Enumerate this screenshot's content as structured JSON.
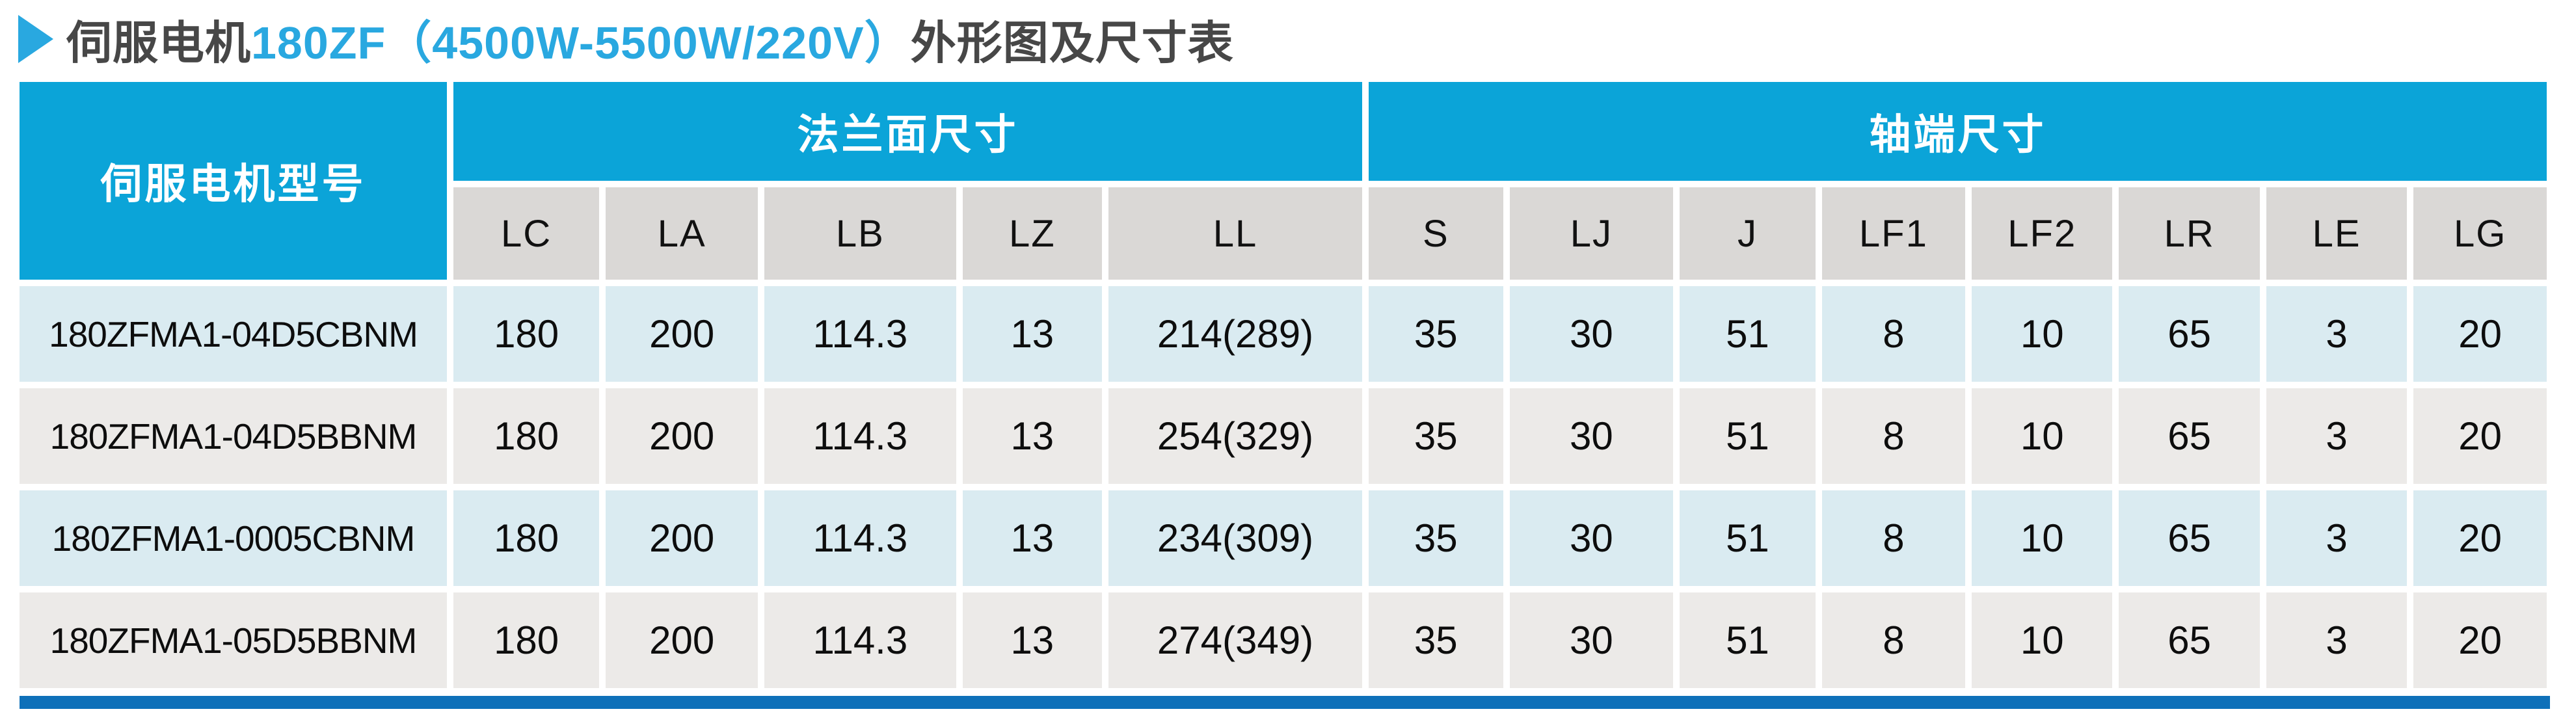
{
  "title": {
    "dark_part_1": "伺服电机",
    "accent_part": "180ZF（4500W-5500W/220V）",
    "dark_part_2": "外形图及尺寸表"
  },
  "table": {
    "model_header": "伺服电机型号",
    "group_headers": [
      {
        "label": "法兰面尺寸",
        "span": 5
      },
      {
        "label": "轴端尺寸",
        "span": 8
      }
    ],
    "columns": [
      "LC",
      "LA",
      "LB",
      "LZ",
      "LL",
      "S",
      "LJ",
      "J",
      "LF1",
      "LF2",
      "LR",
      "LE",
      "LG"
    ],
    "rows": [
      {
        "model": "180ZFMA1-04D5CBNM",
        "values": [
          "180",
          "200",
          "114.3",
          "13",
          "214(289)",
          "35",
          "30",
          "51",
          "8",
          "10",
          "65",
          "3",
          "20"
        ]
      },
      {
        "model": "180ZFMA1-04D5BBNM",
        "values": [
          "180",
          "200",
          "114.3",
          "13",
          "254(329)",
          "35",
          "30",
          "51",
          "8",
          "10",
          "65",
          "3",
          "20"
        ]
      },
      {
        "model": "180ZFMA1-0005CBNM",
        "values": [
          "180",
          "200",
          "114.3",
          "13",
          "234(309)",
          "35",
          "30",
          "51",
          "8",
          "10",
          "65",
          "3",
          "20"
        ]
      },
      {
        "model": "180ZFMA1-05D5BBNM",
        "values": [
          "180",
          "200",
          "114.3",
          "13",
          "274(349)",
          "35",
          "30",
          "51",
          "8",
          "10",
          "65",
          "3",
          "20"
        ]
      }
    ]
  },
  "colors": {
    "accent_blue": "#29a8e0",
    "header_blue": "#0ba4d8",
    "subheader_gray": "#dad8d6",
    "row_light_blue": "#daebf1",
    "row_light_gray": "#eceae8",
    "bottom_bar_blue": "#0e70b9",
    "title_dark": "#474747"
  }
}
